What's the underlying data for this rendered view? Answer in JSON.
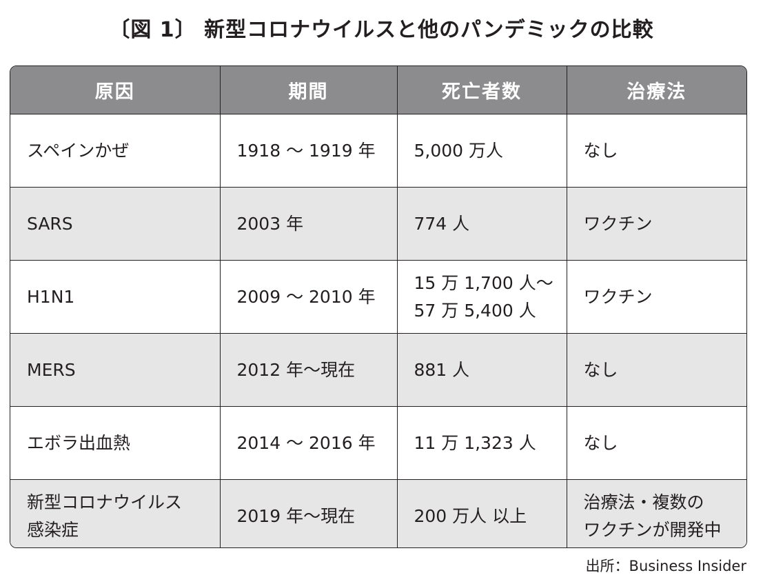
{
  "title": "〔図 1〕 新型コロナウイルスと他のパンデミックの比較",
  "table": {
    "headers": [
      "原因",
      "期間",
      "死亡者数",
      "治療法"
    ],
    "rows": [
      {
        "cause": [
          "スペインかぜ"
        ],
        "period": [
          "1918 〜 1919 年"
        ],
        "deaths": [
          "5,000 万人"
        ],
        "treatment": [
          "なし"
        ]
      },
      {
        "cause": [
          "SARS"
        ],
        "period": [
          "2003 年"
        ],
        "deaths": [
          "774 人"
        ],
        "treatment": [
          "ワクチン"
        ]
      },
      {
        "cause": [
          "H1N1"
        ],
        "period": [
          "2009 〜 2010 年"
        ],
        "deaths": [
          "15 万 1,700 人〜",
          "57 万 5,400 人"
        ],
        "treatment": [
          "ワクチン"
        ]
      },
      {
        "cause": [
          "MERS"
        ],
        "period": [
          "2012 年〜現在"
        ],
        "deaths": [
          "881 人"
        ],
        "treatment": [
          "なし"
        ]
      },
      {
        "cause": [
          "エボラ出血熱"
        ],
        "period": [
          "2014 〜 2016 年"
        ],
        "deaths": [
          "11 万 1,323 人"
        ],
        "treatment": [
          "なし"
        ]
      },
      {
        "cause": [
          "新型コロナウイルス",
          "感染症"
        ],
        "period": [
          "2019 年〜現在"
        ],
        "deaths": [
          "200 万人 以上"
        ],
        "treatment": [
          "治療法・複数の",
          "ワクチンが開発中"
        ]
      }
    ]
  },
  "source": "出所：Business Insider"
}
